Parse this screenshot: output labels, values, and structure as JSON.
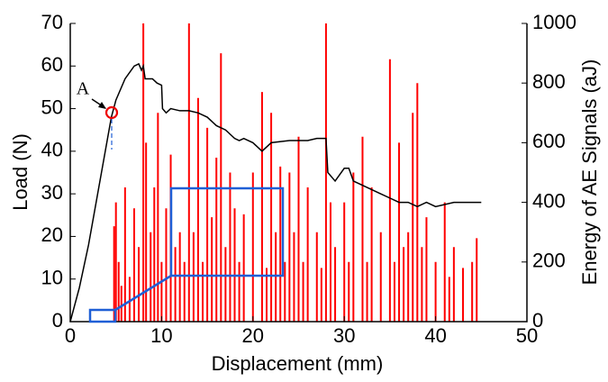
{
  "chart_data": {
    "type": "combo",
    "xlabel": "Displacement (mm)",
    "ylabel": "Load (N)",
    "y2label": "Energy of AE Signals (aJ)",
    "annotation": "A",
    "xlim": [
      0,
      50
    ],
    "xticks": [
      0,
      10,
      20,
      30,
      40,
      50
    ],
    "ylim": [
      0,
      70
    ],
    "yticks": [
      0,
      10,
      20,
      30,
      40,
      50,
      60,
      70
    ],
    "y2lim": [
      0,
      1000
    ],
    "y2ticks": [
      0,
      200,
      400,
      600,
      800,
      1000
    ],
    "series": [
      {
        "type": "bar",
        "axis": "y2",
        "color": "#ff0000",
        "x": [
          4.8,
          5.0,
          5.3,
          5.6,
          6,
          6.5,
          7,
          7.5,
          8,
          8.3,
          8.8,
          9.2,
          9.6,
          10,
          10.5,
          11,
          11.5,
          12,
          12.5,
          13,
          13.5,
          14,
          14.5,
          15,
          15.5,
          16,
          16.5,
          17,
          17.5,
          18,
          18.5,
          19,
          20,
          21,
          21.5,
          22,
          22.5,
          23,
          23.5,
          24,
          24.5,
          25,
          25.5,
          26,
          27,
          27.5,
          28,
          28.5,
          29,
          30,
          30.5,
          31,
          32,
          32.5,
          33,
          34,
          35,
          35.5,
          36,
          36.5,
          37,
          37.5,
          38,
          38.5,
          39,
          40,
          41,
          41.5,
          42,
          43,
          44,
          44.5
        ],
        "values": [
          320,
          400,
          200,
          120,
          450,
          150,
          380,
          250,
          1000,
          600,
          300,
          450,
          700,
          200,
          380,
          560,
          250,
          300,
          200,
          1000,
          300,
          750,
          200,
          650,
          350,
          550,
          900,
          250,
          500,
          380,
          200,
          360,
          500,
          770,
          180,
          700,
          300,
          520,
          200,
          500,
          300,
          620,
          200,
          450,
          300,
          180,
          1000,
          400,
          250,
          400,
          200,
          500,
          620,
          200,
          450,
          300,
          880,
          200,
          600,
          250,
          300,
          700,
          800,
          250,
          350,
          200,
          400,
          150,
          250,
          180,
          200,
          280
        ]
      },
      {
        "type": "line",
        "axis": "y",
        "color": "#000000",
        "x": [
          0,
          1,
          2,
          3,
          4,
          4.5,
          5,
          6,
          7,
          7.5,
          7.8,
          8,
          8.2,
          9,
          9.5,
          10,
          10.1,
          10.5,
          11,
          12,
          13,
          14,
          15,
          16,
          17,
          18,
          18.5,
          19,
          20,
          21,
          22,
          24,
          26,
          27,
          28,
          28.2,
          29,
          30,
          30.5,
          31,
          32,
          34,
          35,
          36,
          37,
          38,
          39,
          40,
          42,
          43,
          45
        ],
        "values": [
          0,
          8,
          18,
          30,
          42,
          48,
          52,
          57,
          60,
          60.5,
          59,
          60,
          57,
          57,
          56,
          55.5,
          50,
          49,
          50,
          49.5,
          49.5,
          49,
          48,
          46,
          45,
          43,
          42.5,
          43,
          42,
          40,
          42,
          42.5,
          42.5,
          43,
          43,
          35,
          33,
          36,
          36,
          33,
          32,
          30,
          29,
          28,
          28,
          27,
          28,
          27,
          28,
          28,
          28
        ]
      }
    ]
  }
}
